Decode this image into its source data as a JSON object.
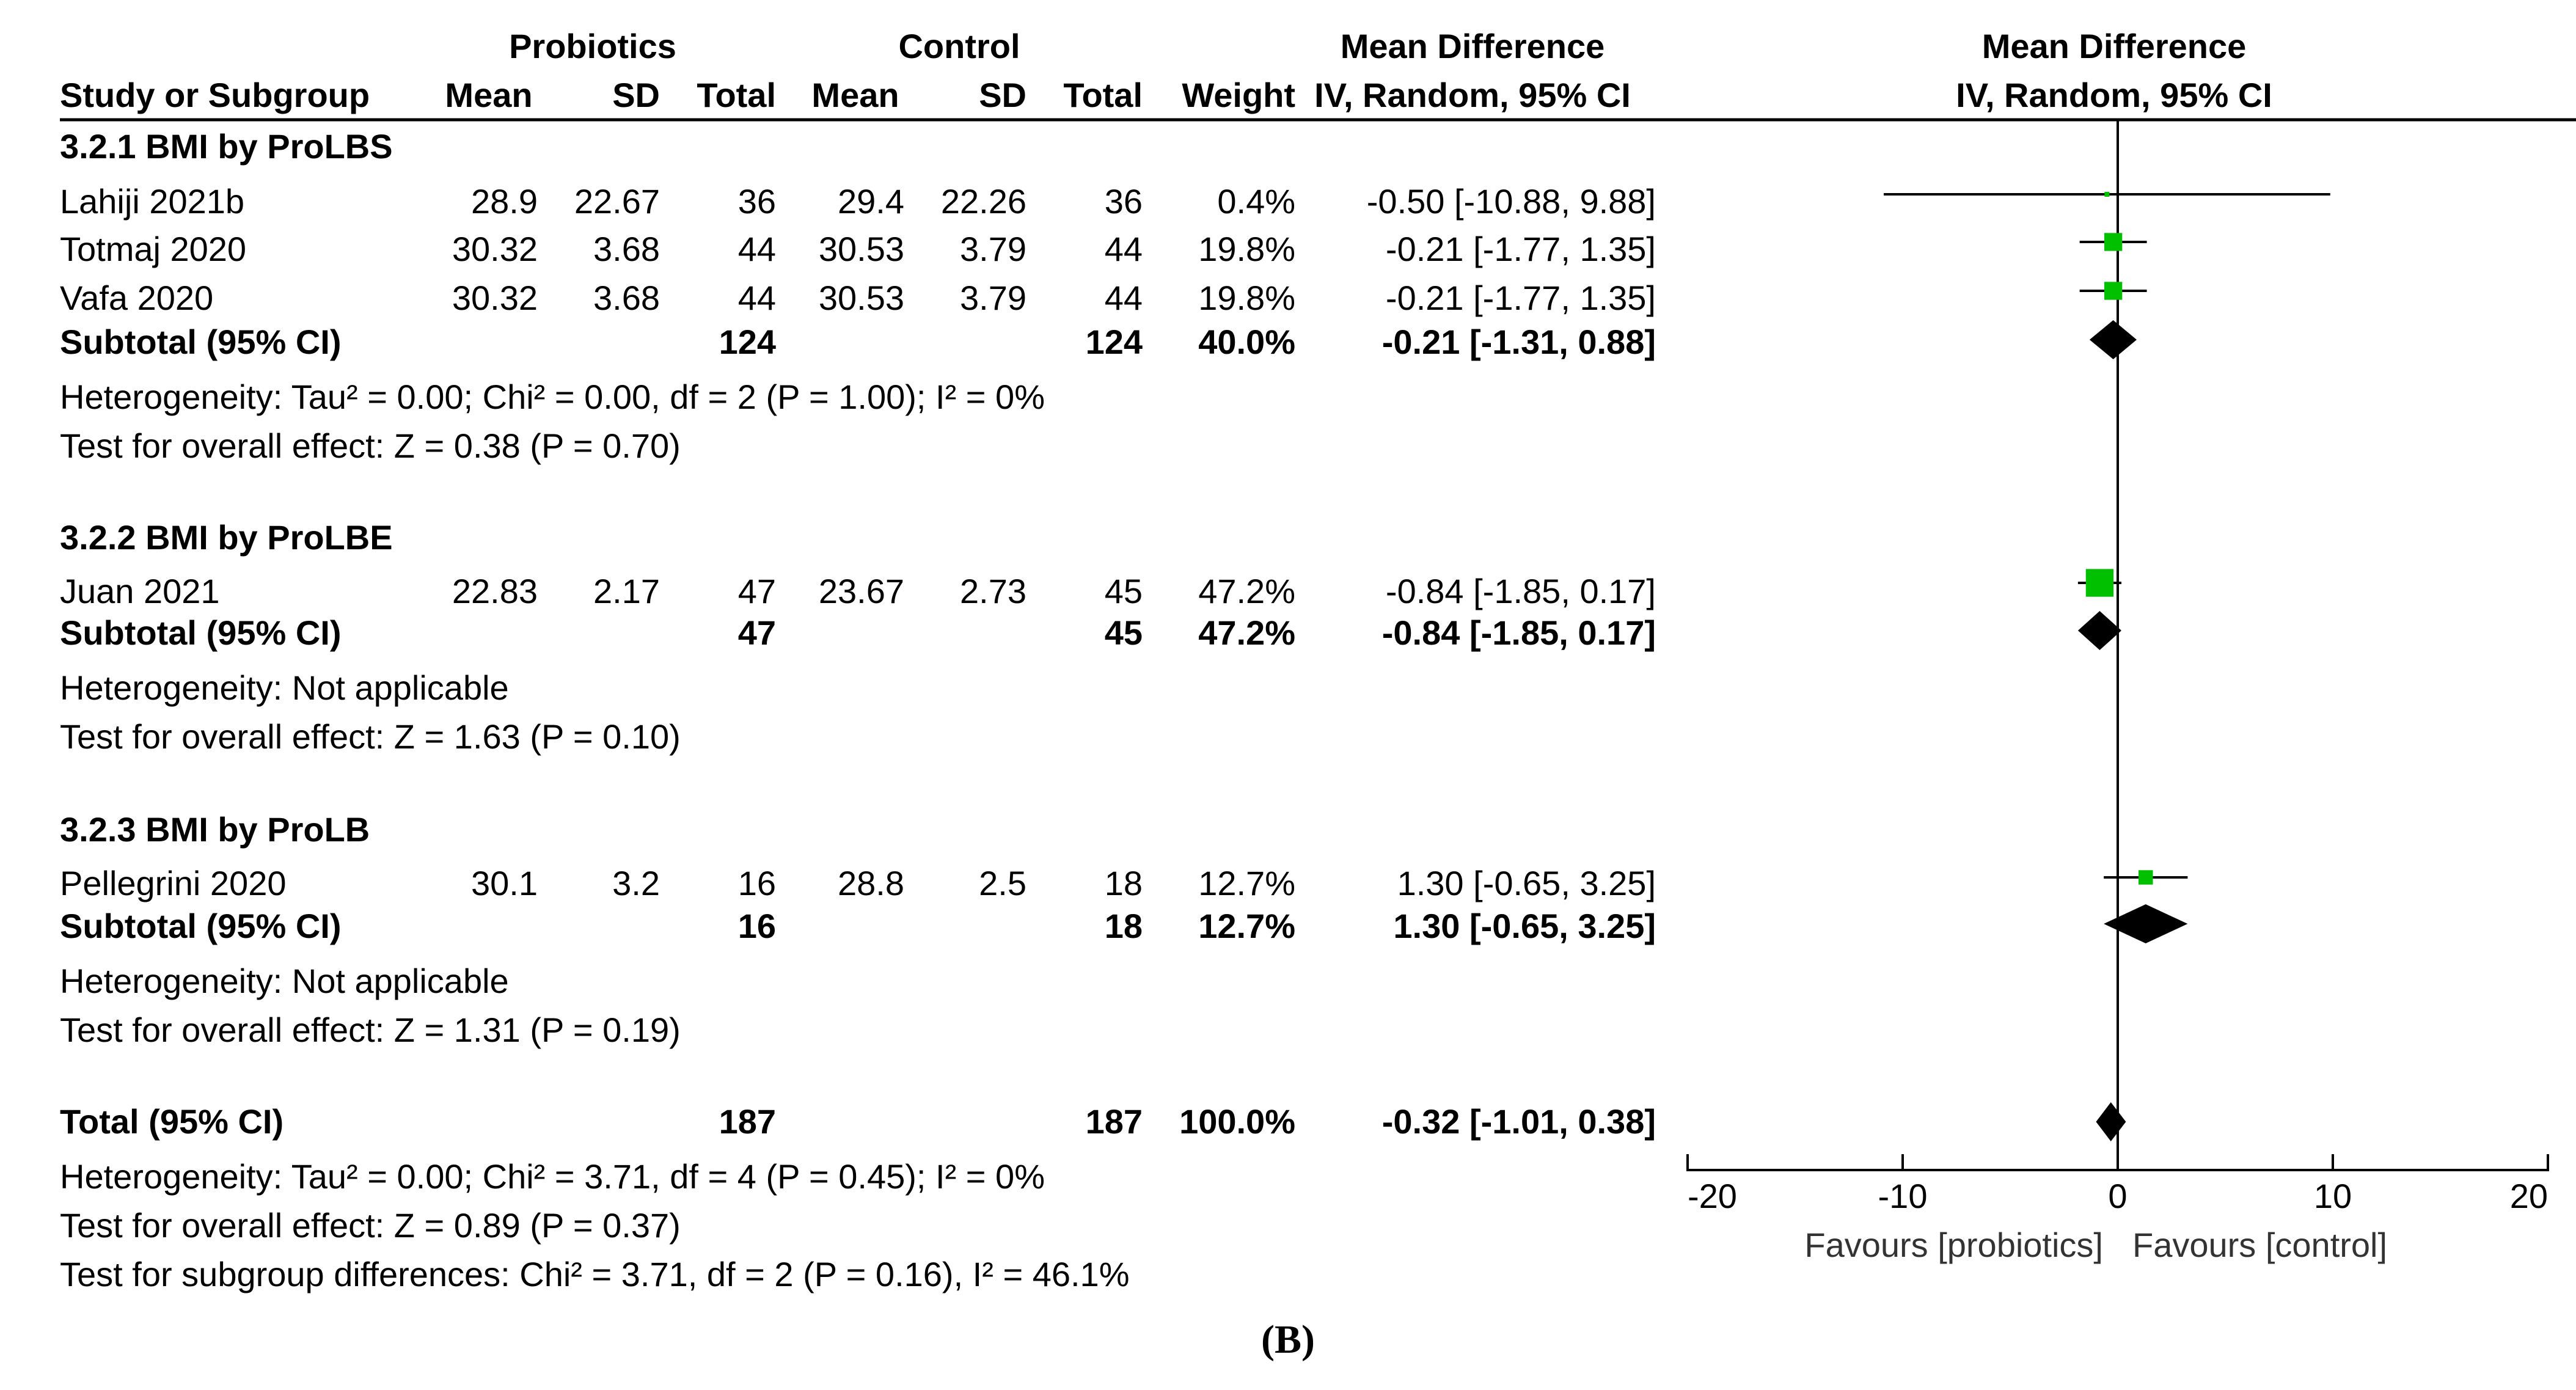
{
  "headers": {
    "group_probiotics": "Probiotics",
    "group_control": "Control",
    "study_col": "Study or Subgroup",
    "mean_col": "Mean",
    "sd_col": "SD",
    "total_col": "Total",
    "weight_col": "Weight",
    "md_col_title": "Mean Difference",
    "md_col_method": "IV, Random, 95% CI",
    "plot_title": "Mean Difference",
    "plot_method": "IV, Random, 95% CI"
  },
  "groups": [
    {
      "title": "3.2.1 BMI by ProLBS",
      "studies": [
        {
          "name": "Lahiji 2021b",
          "p_mean": "28.9",
          "p_sd": "22.67",
          "p_total": "36",
          "c_mean": "29.4",
          "c_sd": "22.26",
          "c_total": "36",
          "weight": "0.4%",
          "ci": "-0.50 [-10.88, 9.88]"
        },
        {
          "name": "Totmaj 2020",
          "p_mean": "30.32",
          "p_sd": "3.68",
          "p_total": "44",
          "c_mean": "30.53",
          "c_sd": "3.79",
          "c_total": "44",
          "weight": "19.8%",
          "ci": "-0.21 [-1.77, 1.35]"
        },
        {
          "name": "Vafa 2020",
          "p_mean": "30.32",
          "p_sd": "3.68",
          "p_total": "44",
          "c_mean": "30.53",
          "c_sd": "3.79",
          "c_total": "44",
          "weight": "19.8%",
          "ci": "-0.21 [-1.77, 1.35]"
        }
      ],
      "subtotal": {
        "label": "Subtotal (95% CI)",
        "p_total": "124",
        "c_total": "124",
        "weight": "40.0%",
        "ci": "-0.21 [-1.31, 0.88]"
      },
      "heterogeneity": "Heterogeneity: Tau² = 0.00; Chi² = 0.00, df = 2 (P = 1.00); I² = 0%",
      "overall": "Test for overall effect: Z = 0.38 (P = 0.70)"
    },
    {
      "title": "3.2.2 BMI by ProLBE",
      "studies": [
        {
          "name": "Juan 2021",
          "p_mean": "22.83",
          "p_sd": "2.17",
          "p_total": "47",
          "c_mean": "23.67",
          "c_sd": "2.73",
          "c_total": "45",
          "weight": "47.2%",
          "ci": "-0.84 [-1.85, 0.17]"
        }
      ],
      "subtotal": {
        "label": "Subtotal (95% CI)",
        "p_total": "47",
        "c_total": "45",
        "weight": "47.2%",
        "ci": "-0.84 [-1.85, 0.17]"
      },
      "heterogeneity": "Heterogeneity: Not applicable",
      "overall": "Test for overall effect: Z = 1.63 (P = 0.10)"
    },
    {
      "title": "3.2.3 BMI by ProLB",
      "studies": [
        {
          "name": "Pellegrini 2020",
          "p_mean": "30.1",
          "p_sd": "3.2",
          "p_total": "16",
          "c_mean": "28.8",
          "c_sd": "2.5",
          "c_total": "18",
          "weight": "12.7%",
          "ci": "1.30 [-0.65, 3.25]"
        }
      ],
      "subtotal": {
        "label": "Subtotal (95% CI)",
        "p_total": "16",
        "c_total": "18",
        "weight": "12.7%",
        "ci": "1.30 [-0.65, 3.25]"
      },
      "heterogeneity": "Heterogeneity: Not applicable",
      "overall": "Test for overall effect: Z = 1.31 (P = 0.19)"
    }
  ],
  "total": {
    "label": "Total (95% CI)",
    "p_total": "187",
    "c_total": "187",
    "weight": "100.0%",
    "ci": "-0.32 [-1.01, 0.38]",
    "heterogeneity": "Heterogeneity: Tau² = 0.00; Chi² = 3.71, df = 4 (P = 0.45); I² = 0%",
    "overall": "Test for overall effect: Z = 0.89 (P = 0.37)",
    "subgroup": "Test for subgroup differences: Chi² = 3.71, df = 2 (P = 0.16), I² = 46.1%"
  },
  "caption": "(B)",
  "chart_data": {
    "type": "forest",
    "title": "Mean Difference IV, Random, 95% CI",
    "xlim": [
      -20,
      20
    ],
    "xticks": [
      -20,
      -10,
      0,
      10,
      20
    ],
    "xtick_labels": [
      "-20",
      "-10",
      "0",
      "10",
      "20"
    ],
    "favours_left": "Favours [probiotics]",
    "favours_right": "Favours [control]",
    "study_color": "#00c000",
    "diamond_color": "#000000",
    "series": [
      {
        "name": "Lahiji 2021b",
        "kind": "study",
        "md": -0.5,
        "lo": -10.88,
        "hi": 9.88,
        "weight": 0.4
      },
      {
        "name": "Totmaj 2020",
        "kind": "study",
        "md": -0.21,
        "lo": -1.77,
        "hi": 1.35,
        "weight": 19.8
      },
      {
        "name": "Vafa 2020",
        "kind": "study",
        "md": -0.21,
        "lo": -1.77,
        "hi": 1.35,
        "weight": 19.8
      },
      {
        "name": "Subtotal 3.2.1",
        "kind": "diamond",
        "md": -0.21,
        "lo": -1.31,
        "hi": 0.88,
        "weight": 40.0
      },
      {
        "name": "Juan 2021",
        "kind": "study",
        "md": -0.84,
        "lo": -1.85,
        "hi": 0.17,
        "weight": 47.2
      },
      {
        "name": "Subtotal 3.2.2",
        "kind": "diamond",
        "md": -0.84,
        "lo": -1.85,
        "hi": 0.17,
        "weight": 47.2
      },
      {
        "name": "Pellegrini 2020",
        "kind": "study",
        "md": 1.3,
        "lo": -0.65,
        "hi": 3.25,
        "weight": 12.7
      },
      {
        "name": "Subtotal 3.2.3",
        "kind": "diamond",
        "md": 1.3,
        "lo": -0.65,
        "hi": 3.25,
        "weight": 12.7
      },
      {
        "name": "Total",
        "kind": "diamond",
        "md": -0.32,
        "lo": -1.01,
        "hi": 0.38,
        "weight": 100.0
      }
    ]
  }
}
